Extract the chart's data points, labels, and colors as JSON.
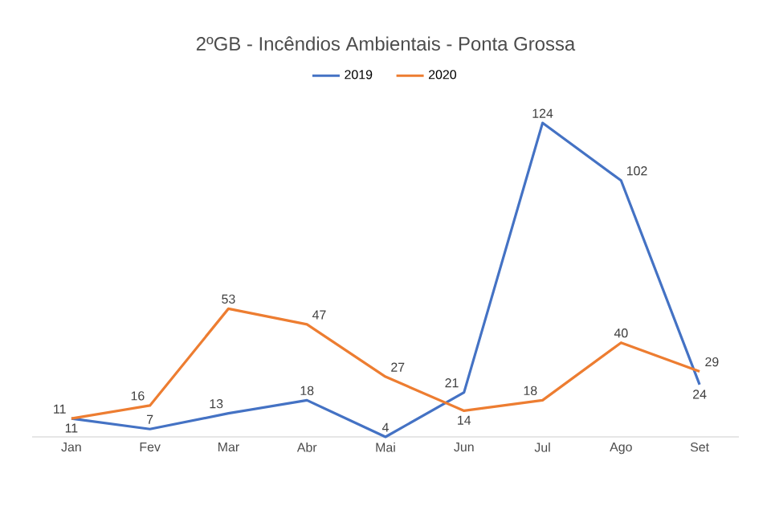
{
  "chart_data": {
    "type": "line",
    "title": "2ºGB - Incêndios Ambientais - Ponta Grossa",
    "categories": [
      "Jan",
      "Fev",
      "Mar",
      "Abr",
      "Mai",
      "Jun",
      "Jul",
      "Ago",
      "Set"
    ],
    "series": [
      {
        "name": "2019",
        "color": "#4472c4",
        "values": [
          11,
          7,
          13,
          18,
          4,
          21,
          124,
          102,
          24
        ]
      },
      {
        "name": "2020",
        "color": "#ed7d31",
        "values": [
          11,
          16,
          53,
          47,
          27,
          14,
          18,
          40,
          29
        ]
      }
    ],
    "data_labels": true,
    "legend": "top",
    "marker": "none",
    "line_style": "solid"
  }
}
